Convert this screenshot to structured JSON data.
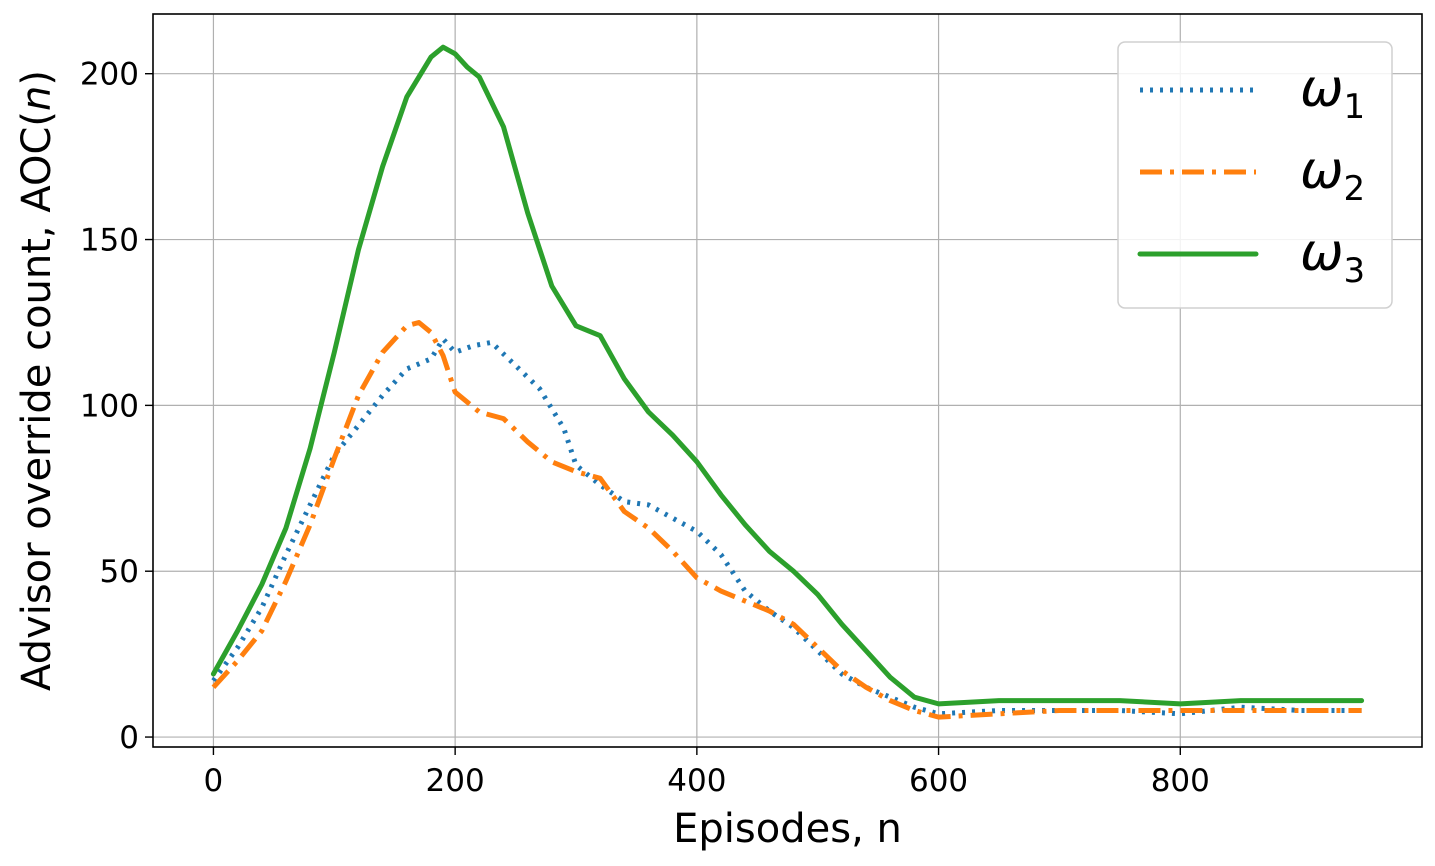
{
  "chart_data": {
    "type": "line",
    "xlabel": "Episodes, n",
    "ylabel": "Advisor override count, AOC(n)",
    "ylabel_parts": {
      "prefix": "Advisor override count, AOC(",
      "var": "n",
      "suffix": ")"
    },
    "xlim": [
      -50,
      1000
    ],
    "ylim": [
      -3,
      218
    ],
    "xticks": [
      0,
      200,
      400,
      600,
      800
    ],
    "yticks": [
      0,
      50,
      100,
      150,
      200
    ],
    "grid": true,
    "legend_position": "top-right",
    "series": [
      {
        "name": "ω1",
        "name_base": "ω",
        "name_sub": "1",
        "color": "#1f77b4",
        "style": "dotted",
        "x": [
          0,
          20,
          40,
          60,
          80,
          100,
          120,
          140,
          160,
          180,
          190,
          200,
          215,
          230,
          250,
          270,
          290,
          300,
          320,
          340,
          360,
          380,
          400,
          420,
          440,
          460,
          480,
          500,
          520,
          540,
          560,
          580,
          600,
          650,
          700,
          750,
          800,
          850,
          900,
          950
        ],
        "y": [
          17,
          27,
          39,
          55,
          70,
          85,
          94,
          103,
          111,
          114,
          120,
          116,
          118,
          119,
          112,
          105,
          93,
          82,
          76,
          71,
          70,
          66,
          62,
          55,
          44,
          38,
          33,
          26,
          19,
          15,
          12,
          9,
          7,
          8,
          8,
          8,
          7,
          9,
          8,
          8
        ]
      },
      {
        "name": "ω2",
        "name_base": "ω",
        "name_sub": "2",
        "color": "#ff7f0e",
        "style": "dashdot",
        "x": [
          0,
          20,
          40,
          60,
          80,
          100,
          120,
          140,
          160,
          170,
          180,
          190,
          200,
          220,
          240,
          260,
          280,
          300,
          320,
          340,
          360,
          380,
          400,
          420,
          440,
          460,
          480,
          500,
          520,
          540,
          560,
          580,
          600,
          650,
          700,
          750,
          800,
          850,
          900,
          950
        ],
        "y": [
          15,
          23,
          32,
          47,
          64,
          84,
          103,
          116,
          124,
          125,
          122,
          115,
          104,
          98,
          96,
          89,
          83,
          80,
          78,
          68,
          63,
          56,
          48,
          44,
          41,
          38,
          34,
          27,
          20,
          15,
          11,
          8,
          6,
          7,
          8,
          8,
          8,
          8,
          8,
          8
        ]
      },
      {
        "name": "ω3",
        "name_base": "ω",
        "name_sub": "3",
        "color": "#2ca02c",
        "style": "solid",
        "x": [
          0,
          20,
          40,
          60,
          80,
          100,
          120,
          140,
          160,
          180,
          190,
          200,
          210,
          220,
          240,
          260,
          280,
          300,
          320,
          340,
          360,
          380,
          400,
          420,
          440,
          460,
          480,
          500,
          520,
          540,
          560,
          580,
          600,
          650,
          700,
          750,
          800,
          850,
          900,
          950
        ],
        "y": [
          19,
          32,
          46,
          63,
          87,
          116,
          147,
          172,
          193,
          205,
          208,
          206,
          202,
          199,
          184,
          158,
          136,
          124,
          121,
          108,
          98,
          91,
          83,
          73,
          64,
          56,
          50,
          43,
          34,
          26,
          18,
          12,
          10,
          11,
          11,
          11,
          10,
          11,
          11,
          11
        ]
      }
    ]
  }
}
